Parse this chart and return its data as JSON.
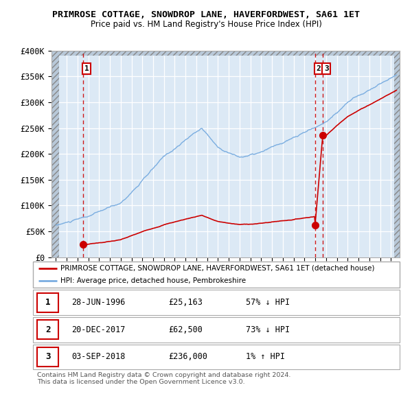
{
  "title": "PRIMROSE COTTAGE, SNOWDROP LANE, HAVERFORDWEST, SA61 1ET",
  "subtitle": "Price paid vs. HM Land Registry's House Price Index (HPI)",
  "hpi_color": "#7aade0",
  "price_color": "#cc0000",
  "bg_color": "#dce9f5",
  "hatch_color": "#c0c0c0",
  "ylim": [
    0,
    400000
  ],
  "yticks": [
    0,
    50000,
    100000,
    150000,
    200000,
    250000,
    300000,
    350000,
    400000
  ],
  "ytick_labels": [
    "£0",
    "£50K",
    "£100K",
    "£150K",
    "£200K",
    "£250K",
    "£300K",
    "£350K",
    "£400K"
  ],
  "xlim_start": 1993.6,
  "xlim_end": 2025.8,
  "sales": [
    {
      "year": 1996.49,
      "price": 25163,
      "label": "1"
    },
    {
      "year": 2017.97,
      "price": 62500,
      "label": "2"
    },
    {
      "year": 2018.67,
      "price": 236000,
      "label": "3"
    }
  ],
  "table_rows": [
    {
      "num": "1",
      "date": "28-JUN-1996",
      "price": "£25,163",
      "hpi": "57% ↓ HPI"
    },
    {
      "num": "2",
      "date": "20-DEC-2017",
      "price": "£62,500",
      "hpi": "73% ↓ HPI"
    },
    {
      "num": "3",
      "date": "03-SEP-2018",
      "price": "£236,000",
      "hpi": "1% ↑ HPI"
    }
  ],
  "legend_line1": "PRIMROSE COTTAGE, SNOWDROP LANE, HAVERFORDWEST, SA61 1ET (detached house)",
  "legend_line2": "HPI: Average price, detached house, Pembrokeshire",
  "footnote": "Contains HM Land Registry data © Crown copyright and database right 2024.\nThis data is licensed under the Open Government Licence v3.0."
}
